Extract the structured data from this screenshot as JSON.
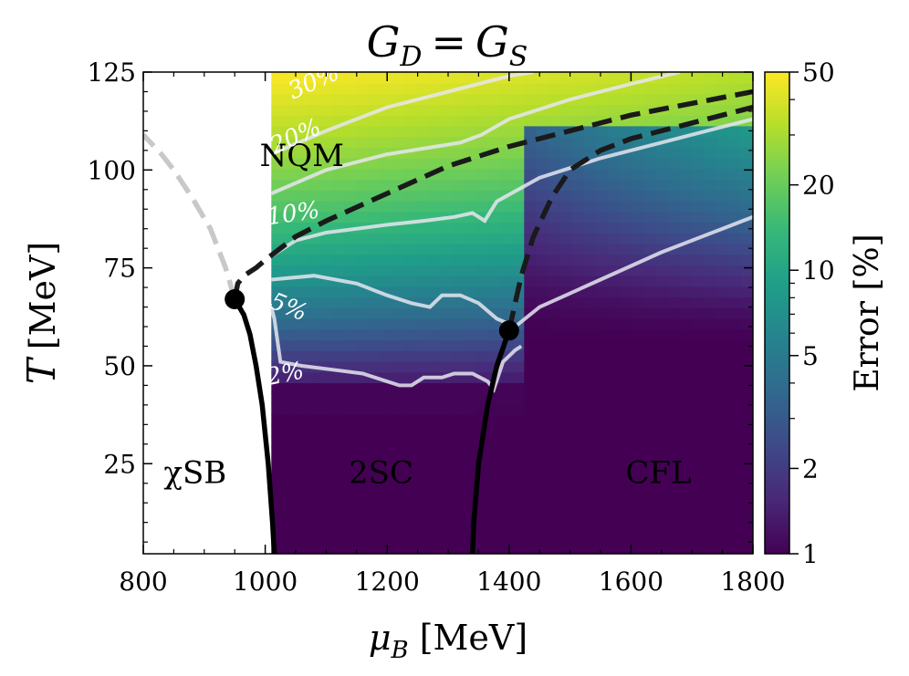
{
  "chart_data": {
    "type": "heatmap",
    "title": "G_D = G_S",
    "title_parts": {
      "lhs": "G",
      "lhs_sub": "D",
      "eq": "=",
      "rhs": "G",
      "rhs_sub": "S"
    },
    "xlabel": "μ_B [MeV]",
    "xlabel_parts": {
      "symbol": "μ",
      "sub": "B",
      "unit": "[MeV]"
    },
    "ylabel": "T [MeV]",
    "ylabel_parts": {
      "symbol": "T",
      "unit": "[MeV]"
    },
    "xlim": [
      800,
      1800
    ],
    "ylim": [
      2,
      125
    ],
    "xticks": [
      800,
      1000,
      1200,
      1400,
      1600,
      1800
    ],
    "xtick_labels": [
      "800",
      "1000",
      "1200",
      "1400",
      "1600",
      "1800"
    ],
    "yticks": [
      25,
      50,
      75,
      100,
      125
    ],
    "ytick_labels": [
      "25",
      "50",
      "75",
      "100",
      "125"
    ],
    "colorbar": {
      "label": "Error [%]",
      "scale": "log",
      "range": [
        1,
        50
      ],
      "ticks": [
        1,
        2,
        5,
        10,
        20,
        50
      ],
      "tick_labels": [
        "1",
        "2",
        "5",
        "10",
        "20",
        "50"
      ],
      "colormap": [
        "#440154",
        "#482878",
        "#3e4989",
        "#31688e",
        "#26828e",
        "#1f9e89",
        "#35b779",
        "#6ece58",
        "#b5de2b",
        "#fde725"
      ]
    },
    "heatmap_x_start": 1010,
    "regions": [
      {
        "name": "chiSB",
        "label": "χSB",
        "x": 885,
        "y": 20
      },
      {
        "name": "2SC",
        "label": "2SC",
        "x": 1190,
        "y": 20
      },
      {
        "name": "CFL",
        "label": "CFL",
        "x": 1645,
        "y": 20
      },
      {
        "name": "NQM",
        "label": "NQM",
        "x": 1060,
        "y": 101
      }
    ],
    "contours": [
      {
        "level": "30%",
        "label_x": 1045,
        "label_y": 118,
        "label_angle": -24,
        "points": [
          [
            1010,
            104
          ],
          [
            1100,
            110
          ],
          [
            1200,
            116
          ],
          [
            1300,
            120
          ],
          [
            1400,
            124
          ],
          [
            1440,
            125
          ]
        ]
      },
      {
        "level": "20%",
        "label_x": 1015,
        "label_y": 104,
        "label_angle": -24,
        "points": [
          [
            1010,
            94
          ],
          [
            1100,
            100
          ],
          [
            1200,
            104
          ],
          [
            1280,
            106
          ],
          [
            1320,
            107
          ],
          [
            1355,
            109
          ],
          [
            1400,
            113
          ],
          [
            1500,
            118
          ],
          [
            1600,
            122
          ],
          [
            1680,
            125
          ]
        ]
      },
      {
        "level": "10%",
        "label_x": 1005,
        "label_y": 86,
        "label_angle": -8,
        "points": [
          [
            1010,
            78
          ],
          [
            1050,
            82
          ],
          [
            1100,
            84
          ],
          [
            1200,
            86
          ],
          [
            1260,
            87
          ],
          [
            1310,
            88
          ],
          [
            1340,
            89
          ],
          [
            1360,
            87
          ],
          [
            1380,
            92
          ],
          [
            1450,
            98
          ],
          [
            1550,
            103
          ],
          [
            1650,
            107
          ],
          [
            1750,
            111
          ],
          [
            1800,
            113
          ]
        ]
      },
      {
        "level": "5%",
        "label_x": 1005,
        "label_y": 65,
        "label_angle": 22,
        "points": [
          [
            1010,
            72
          ],
          [
            1080,
            73
          ],
          [
            1150,
            71
          ],
          [
            1200,
            68
          ],
          [
            1240,
            66
          ],
          [
            1270,
            65
          ],
          [
            1290,
            68
          ],
          [
            1320,
            68
          ],
          [
            1350,
            66
          ],
          [
            1380,
            62
          ],
          [
            1410,
            60
          ],
          [
            1450,
            65
          ],
          [
            1550,
            72
          ],
          [
            1650,
            79
          ],
          [
            1750,
            85
          ],
          [
            1800,
            88
          ]
        ]
      },
      {
        "level": "2%",
        "label_x": 1005,
        "label_y": 45,
        "label_angle": -12,
        "points": [
          [
            1010,
            65
          ],
          [
            1015,
            62
          ],
          [
            1025,
            51
          ],
          [
            1060,
            50
          ],
          [
            1110,
            49
          ],
          [
            1160,
            48
          ],
          [
            1200,
            46
          ],
          [
            1220,
            45
          ],
          [
            1240,
            45
          ],
          [
            1260,
            47
          ],
          [
            1290,
            47
          ],
          [
            1310,
            48
          ],
          [
            1340,
            48
          ],
          [
            1365,
            46
          ],
          [
            1375,
            44
          ],
          [
            1390,
            51
          ],
          [
            1410,
            54
          ],
          [
            1420,
            55
          ]
        ]
      }
    ],
    "phase_lines": [
      {
        "name": "chiSB-boundary",
        "style": "solid",
        "color": "#000000",
        "points": [
          [
            1015,
            2
          ],
          [
            1012,
            10
          ],
          [
            1005,
            25
          ],
          [
            995,
            40
          ],
          [
            985,
            50
          ],
          [
            975,
            58
          ],
          [
            965,
            63
          ],
          [
            950,
            67
          ]
        ]
      },
      {
        "name": "CFL-boundary",
        "style": "solid",
        "color": "#000000",
        "points": [
          [
            1340,
            2
          ],
          [
            1342,
            10
          ],
          [
            1350,
            25
          ],
          [
            1365,
            40
          ],
          [
            1380,
            50
          ],
          [
            1400,
            59
          ]
        ]
      },
      {
        "name": "crossover-gray",
        "style": "dashed",
        "color": "#c8c8c8",
        "points": [
          [
            950,
            67
          ],
          [
            935,
            75
          ],
          [
            910,
            85
          ],
          [
            880,
            93
          ],
          [
            850,
            100
          ],
          [
            830,
            104
          ],
          [
            800,
            109
          ]
        ]
      },
      {
        "name": "NQM-boundary",
        "style": "dashed",
        "color": "#1a1a1a",
        "points": [
          [
            950,
            67
          ],
          [
            955,
            71
          ],
          [
            965,
            73
          ],
          [
            985,
            75
          ],
          [
            1000,
            77
          ],
          [
            1050,
            83
          ],
          [
            1100,
            87
          ],
          [
            1200,
            94
          ],
          [
            1300,
            101
          ],
          [
            1400,
            106
          ],
          [
            1500,
            110
          ],
          [
            1600,
            114
          ],
          [
            1700,
            117
          ],
          [
            1800,
            120
          ]
        ]
      },
      {
        "name": "2SC-CFL-boundary",
        "style": "dashed",
        "color": "#1a1a1a",
        "points": [
          [
            1400,
            59
          ],
          [
            1410,
            66
          ],
          [
            1420,
            73
          ],
          [
            1440,
            83
          ],
          [
            1470,
            93
          ],
          [
            1500,
            100
          ],
          [
            1550,
            105
          ],
          [
            1600,
            108
          ],
          [
            1700,
            112
          ],
          [
            1800,
            116
          ]
        ]
      }
    ],
    "critical_points": [
      {
        "name": "chiSB-critical-point",
        "x": 950,
        "y": 67
      },
      {
        "name": "CFL-critical-point",
        "x": 1400,
        "y": 59
      }
    ]
  }
}
